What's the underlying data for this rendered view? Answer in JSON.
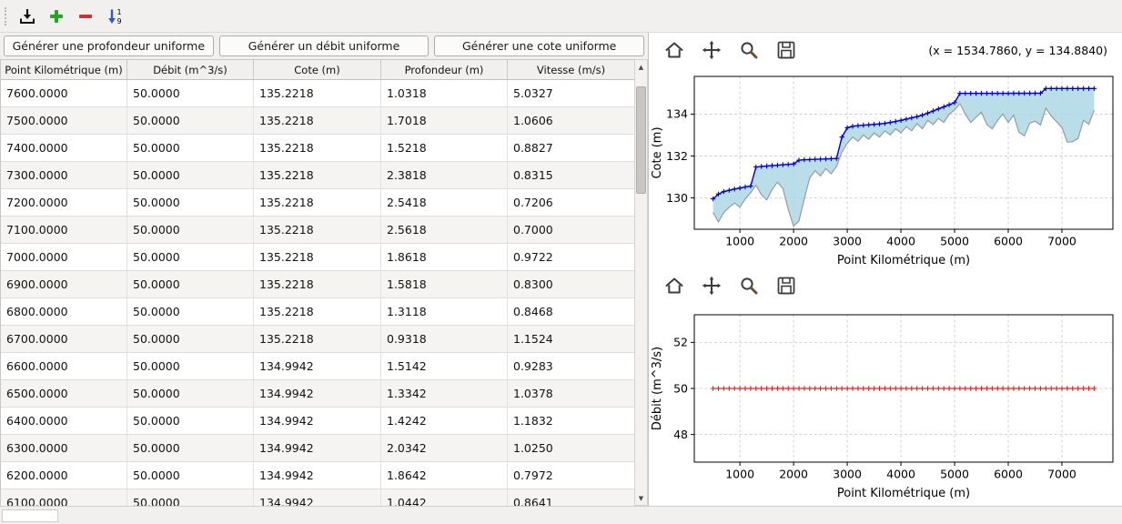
{
  "colors": {
    "water_line": "#0000cc",
    "water_fill": "#add8e6",
    "bed_line": "#9a9a9a",
    "debit_line": "#dd2222",
    "plus_green": "#28a428",
    "minus_red": "#c23535",
    "sort_blue": "#3354cc"
  },
  "top_toolbar": {
    "buttons": [
      {
        "name": "import",
        "icon": "download-into-tray-icon"
      },
      {
        "name": "add-row",
        "icon": "plus-icon"
      },
      {
        "name": "remove-row",
        "icon": "minus-icon"
      },
      {
        "name": "sort-numeric",
        "icon": "sort-numeric-1-9-icon"
      }
    ]
  },
  "left_panel": {
    "buttons": [
      "Générer une profondeur uniforme",
      "Générer un débit uniforme",
      "Générer une cote uniforme"
    ],
    "table": {
      "columns": [
        "Point Kilométrique (m)",
        "Débit (m^3/s)",
        "Cote (m)",
        "Profondeur (m)",
        "Vitesse (m/s)"
      ],
      "rows": [
        [
          "7600.0000",
          "50.0000",
          "135.2218",
          "1.0318",
          "5.0327"
        ],
        [
          "7500.0000",
          "50.0000",
          "135.2218",
          "1.7018",
          "1.0606"
        ],
        [
          "7400.0000",
          "50.0000",
          "135.2218",
          "1.5218",
          "0.8827"
        ],
        [
          "7300.0000",
          "50.0000",
          "135.2218",
          "2.3818",
          "0.8315"
        ],
        [
          "7200.0000",
          "50.0000",
          "135.2218",
          "2.5418",
          "0.7206"
        ],
        [
          "7100.0000",
          "50.0000",
          "135.2218",
          "2.5618",
          "0.7000"
        ],
        [
          "7000.0000",
          "50.0000",
          "135.2218",
          "1.8618",
          "0.9722"
        ],
        [
          "6900.0000",
          "50.0000",
          "135.2218",
          "1.5818",
          "0.8300"
        ],
        [
          "6800.0000",
          "50.0000",
          "135.2218",
          "1.3118",
          "0.8468"
        ],
        [
          "6700.0000",
          "50.0000",
          "135.2218",
          "0.9318",
          "1.1524"
        ],
        [
          "6600.0000",
          "50.0000",
          "134.9942",
          "1.5142",
          "0.9283"
        ],
        [
          "6500.0000",
          "50.0000",
          "134.9942",
          "1.3342",
          "1.0378"
        ],
        [
          "6400.0000",
          "50.0000",
          "134.9942",
          "1.4242",
          "1.1832"
        ],
        [
          "6300.0000",
          "50.0000",
          "134.9942",
          "2.0342",
          "1.0250"
        ],
        [
          "6200.0000",
          "50.0000",
          "134.9942",
          "1.8642",
          "0.7972"
        ],
        [
          "6100.0000",
          "50.0000",
          "134.9942",
          "1.0442",
          "0.8641"
        ]
      ]
    }
  },
  "right_panel": {
    "chart1_toolbar": {
      "icons": [
        "home-icon",
        "pan-icon",
        "zoom-icon",
        "save-icon"
      ],
      "coords": "(x = 1534.7860,  y = 134.8840)"
    },
    "chart2_toolbar": {
      "icons": [
        "home-icon",
        "pan-icon",
        "zoom-icon",
        "save-icon"
      ]
    }
  },
  "chart_data": [
    {
      "type": "line",
      "title": "",
      "xlabel": "Point Kilométrique (m)",
      "ylabel": "Cote (m)",
      "xlim": [
        150,
        7950
      ],
      "ylim": [
        128.5,
        135.8
      ],
      "xticks": [
        1000,
        2000,
        3000,
        4000,
        5000,
        6000,
        7000
      ],
      "yticks": [
        130,
        132,
        134
      ],
      "grid": true,
      "x": {
        "start": 500,
        "step": 100,
        "count": 72
      },
      "series": [
        {
          "name": "water-surface-cote",
          "color": "#0000cc",
          "marker": "+",
          "width": 1.4,
          "y": [
            129.95,
            130.18,
            130.3,
            130.36,
            130.42,
            130.47,
            130.52,
            130.56,
            131.47,
            131.5,
            131.52,
            131.54,
            131.56,
            131.58,
            131.6,
            131.62,
            131.8,
            131.82,
            131.83,
            131.84,
            131.85,
            131.86,
            131.87,
            131.88,
            132.9,
            133.35,
            133.42,
            133.45,
            133.47,
            133.49,
            133.51,
            133.53,
            133.56,
            133.6,
            133.65,
            133.7,
            133.76,
            133.82,
            133.88,
            133.95,
            134.05,
            134.15,
            134.25,
            134.35,
            134.45,
            134.55,
            134.99,
            134.99,
            134.99,
            134.99,
            134.99,
            134.99,
            134.99,
            134.99,
            134.99,
            134.99,
            134.9942,
            134.9942,
            134.9942,
            134.9942,
            134.9942,
            134.9942,
            135.2218,
            135.2218,
            135.2218,
            135.2218,
            135.2218,
            135.2218,
            135.2218,
            135.2218,
            135.2218,
            135.2218
          ]
        },
        {
          "name": "river-bed",
          "color": "#9a9a9a",
          "width": 1.2,
          "y": [
            129.3,
            128.85,
            129.3,
            129.55,
            129.75,
            129.55,
            129.95,
            130.25,
            130.6,
            130.15,
            129.9,
            130.4,
            130.75,
            130.45,
            129.45,
            128.65,
            128.9,
            129.95,
            130.95,
            131.3,
            131.05,
            131.4,
            131.15,
            131.5,
            132.2,
            132.6,
            132.9,
            132.7,
            133.0,
            132.8,
            133.1,
            132.9,
            133.2,
            133.0,
            133.3,
            133.1,
            133.4,
            133.2,
            133.55,
            133.3,
            133.7,
            133.5,
            133.8,
            133.6,
            134.0,
            134.2,
            134.5,
            134.0,
            133.6,
            133.85,
            134.1,
            133.5,
            133.3,
            133.7,
            134.0,
            133.6,
            133.95,
            133.13,
            132.96,
            133.57,
            133.66,
            133.48,
            134.29,
            133.91,
            133.64,
            133.36,
            132.66,
            132.68,
            132.84,
            133.7,
            133.52,
            134.19
          ]
        }
      ],
      "fill_between": {
        "between": [
          0,
          1
        ],
        "color": "#add8e6",
        "opacity": 0.85
      }
    },
    {
      "type": "line",
      "title": "",
      "xlabel": "Point Kilométrique (m)",
      "ylabel": "Débit (m^3/s)",
      "xlim": [
        150,
        7950
      ],
      "ylim": [
        46.8,
        53.2
      ],
      "xticks": [
        1000,
        2000,
        3000,
        4000,
        5000,
        6000,
        7000
      ],
      "yticks": [
        48,
        50,
        52
      ],
      "grid": true,
      "x": {
        "start": 500,
        "step": 100,
        "count": 72
      },
      "series": [
        {
          "name": "debit-uniforme",
          "color": "#dd2222",
          "marker": "+",
          "width": 1.3,
          "y": 50
        }
      ]
    }
  ]
}
